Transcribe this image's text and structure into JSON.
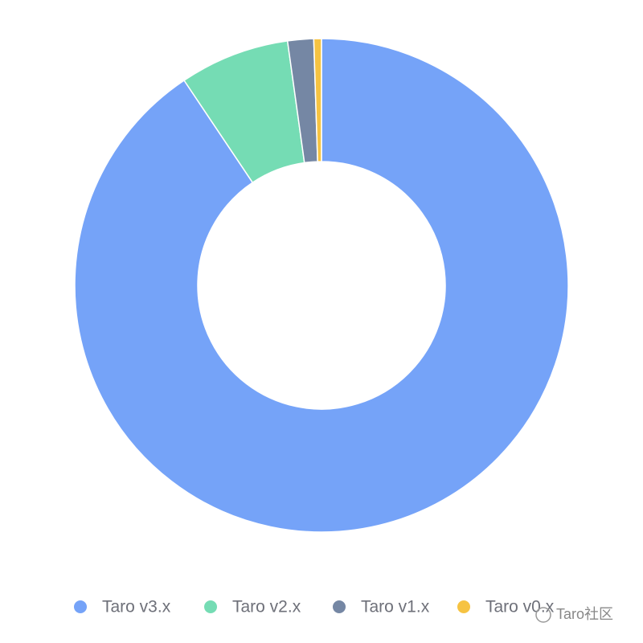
{
  "chart_data": {
    "type": "pie",
    "categories": [
      "Taro v3.x",
      "Taro v2.x",
      "Taro v1.x",
      "Taro v0.x"
    ],
    "values": [
      90.6,
      7.2,
      1.7,
      0.5
    ],
    "colors": [
      "#75a3f8",
      "#75dcb4",
      "#7587a4",
      "#f6c342"
    ],
    "legend": "bottom"
  },
  "watermark": "Taro社区"
}
